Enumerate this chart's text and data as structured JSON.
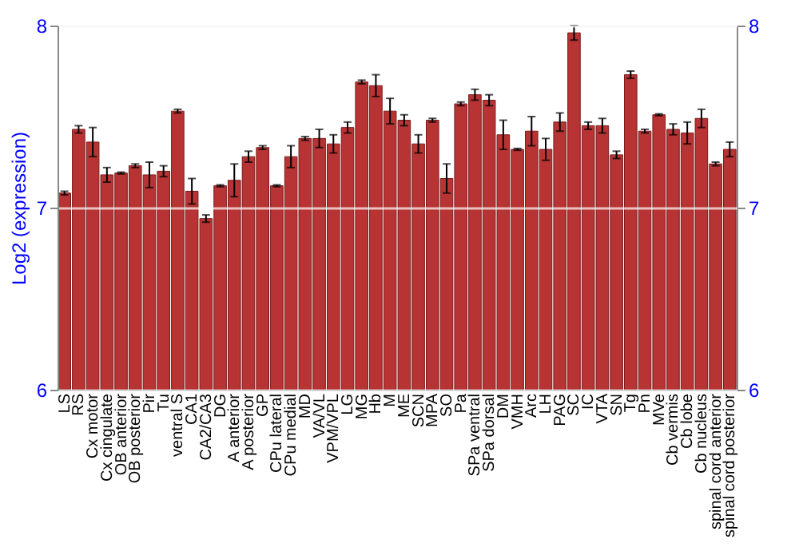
{
  "chart_data": {
    "type": "bar",
    "ylabel": "Log2 (expression)",
    "categories": [
      "LS",
      "RS",
      "Cx motor",
      "Cx cingulate",
      "OB anterior",
      "OB posterior",
      "Pir",
      "Tu",
      "ventral S",
      "CA1",
      "CA2/CA3",
      "DG",
      "A anterior",
      "A posterior",
      "GP",
      "CPu lateral",
      "CPu medial",
      "MD",
      "VA/VL",
      "VPM/VPL",
      "LG",
      "MG",
      "Hb",
      "M",
      "ME",
      "SCN",
      "MPA",
      "SO",
      "Pa",
      "SPa ventral",
      "SPa dorsal",
      "DM",
      "VMH",
      "Arc",
      "LH",
      "PAG",
      "SC",
      "IC",
      "VTA",
      "SN",
      "Tg",
      "Pn",
      "MVe",
      "Cb vermis",
      "Cb lobe",
      "Cb nucleus",
      "spinal cord anterior",
      "spinal cord posterior"
    ],
    "values": [
      7.08,
      7.43,
      7.36,
      7.18,
      7.19,
      7.23,
      7.18,
      7.2,
      7.53,
      7.09,
      6.94,
      7.12,
      7.15,
      7.28,
      7.33,
      7.12,
      7.28,
      7.38,
      7.38,
      7.35,
      7.44,
      7.69,
      7.67,
      7.53,
      7.48,
      7.35,
      7.48,
      7.16,
      7.57,
      7.62,
      7.59,
      7.4,
      7.32,
      7.42,
      7.32,
      7.47,
      7.96,
      7.45,
      7.45,
      7.29,
      7.73,
      7.42,
      7.51,
      7.43,
      7.41,
      7.49,
      7.24,
      7.32
    ],
    "errors": [
      0.01,
      0.02,
      0.08,
      0.04,
      0.005,
      0.01,
      0.07,
      0.03,
      0.01,
      0.07,
      0.02,
      0.005,
      0.09,
      0.03,
      0.01,
      0.005,
      0.06,
      0.01,
      0.05,
      0.05,
      0.03,
      0.01,
      0.06,
      0.07,
      0.03,
      0.05,
      0.01,
      0.08,
      0.01,
      0.03,
      0.03,
      0.08,
      0.005,
      0.08,
      0.06,
      0.05,
      0.04,
      0.02,
      0.04,
      0.02,
      0.02,
      0.01,
      0.005,
      0.03,
      0.06,
      0.05,
      0.01,
      0.04
    ],
    "color": "#b83434",
    "ylim": [
      6,
      8
    ],
    "yticks": [
      6,
      7,
      8
    ],
    "y2lim": [
      6,
      8
    ],
    "y2ticks": [
      6,
      7,
      8
    ],
    "grid": "y"
  }
}
